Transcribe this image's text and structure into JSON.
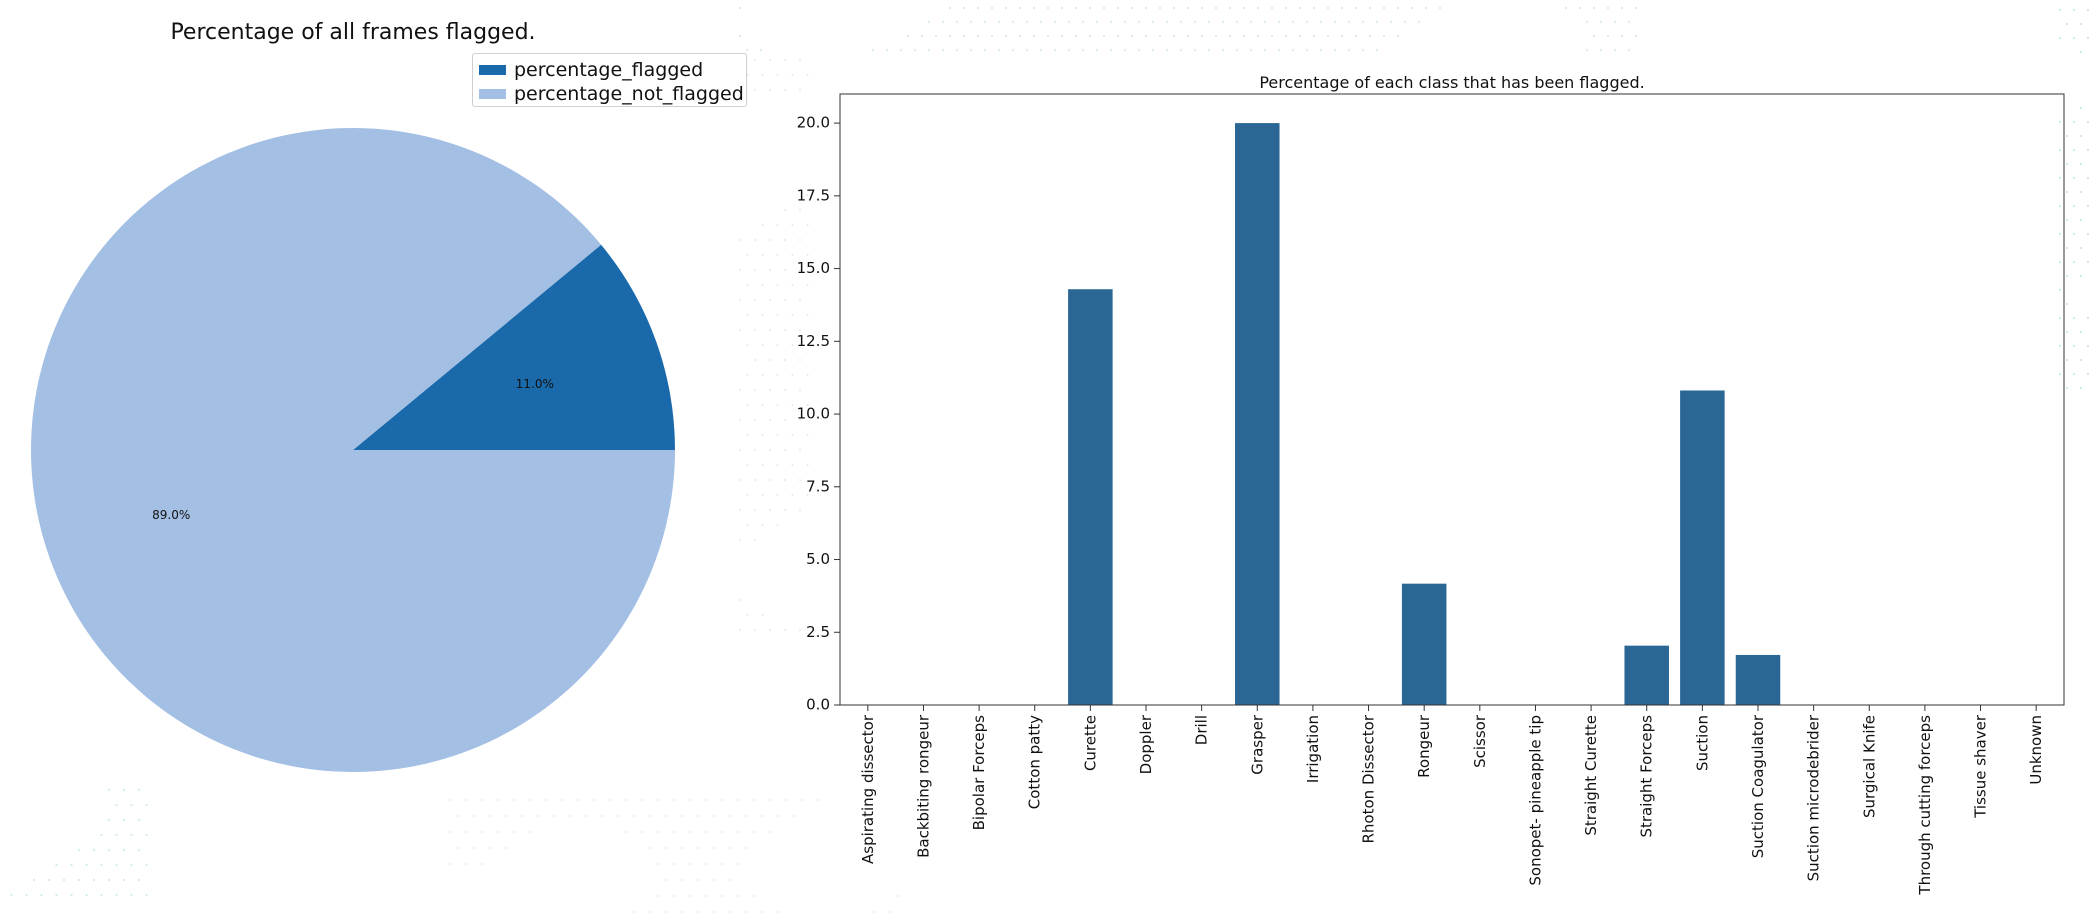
{
  "chart_data": [
    {
      "type": "pie",
      "title": "Percentage of all frames flagged.",
      "legend_position": "top-right",
      "slices": [
        {
          "name": "percentage_flagged",
          "value": 11.0,
          "label": "11.0%",
          "color": "#1a6aab"
        },
        {
          "name": "percentage_not_flagged",
          "value": 89.0,
          "label": "89.0%",
          "color": "#a3bfe4"
        }
      ]
    },
    {
      "type": "bar",
      "title": "Percentage of each class that has been flagged.",
      "xlabel": "",
      "ylabel": "",
      "ylim": [
        0,
        21
      ],
      "yticks": [
        "0.0",
        "2.5",
        "5.0",
        "7.5",
        "10.0",
        "12.5",
        "15.0",
        "17.5",
        "20.0"
      ],
      "grid": false,
      "bar_color": "#2a6795",
      "categories": [
        "Aspirating dissector",
        "Backbiting rongeur",
        "Bipolar Forceps",
        "Cotton patty",
        "Curette",
        "Doppler",
        "Drill",
        "Grasper",
        "Irrigation",
        "Rhoton Dissector",
        "Rongeur",
        "Scissor",
        "Sonopet- pineapple tip",
        "Straight Curette",
        "Straight Forceps",
        "Suction",
        "Suction Coagulator",
        "Suction microdebrider",
        "Surgical Knife",
        "Through cutting forceps",
        "Tissue shaver",
        "Unknown"
      ],
      "values": [
        0,
        0,
        0,
        0,
        14.29,
        0,
        0,
        20.0,
        0,
        0,
        4.17,
        0,
        0,
        0,
        2.04,
        10.81,
        1.72,
        0,
        0,
        0,
        0,
        0
      ]
    }
  ]
}
